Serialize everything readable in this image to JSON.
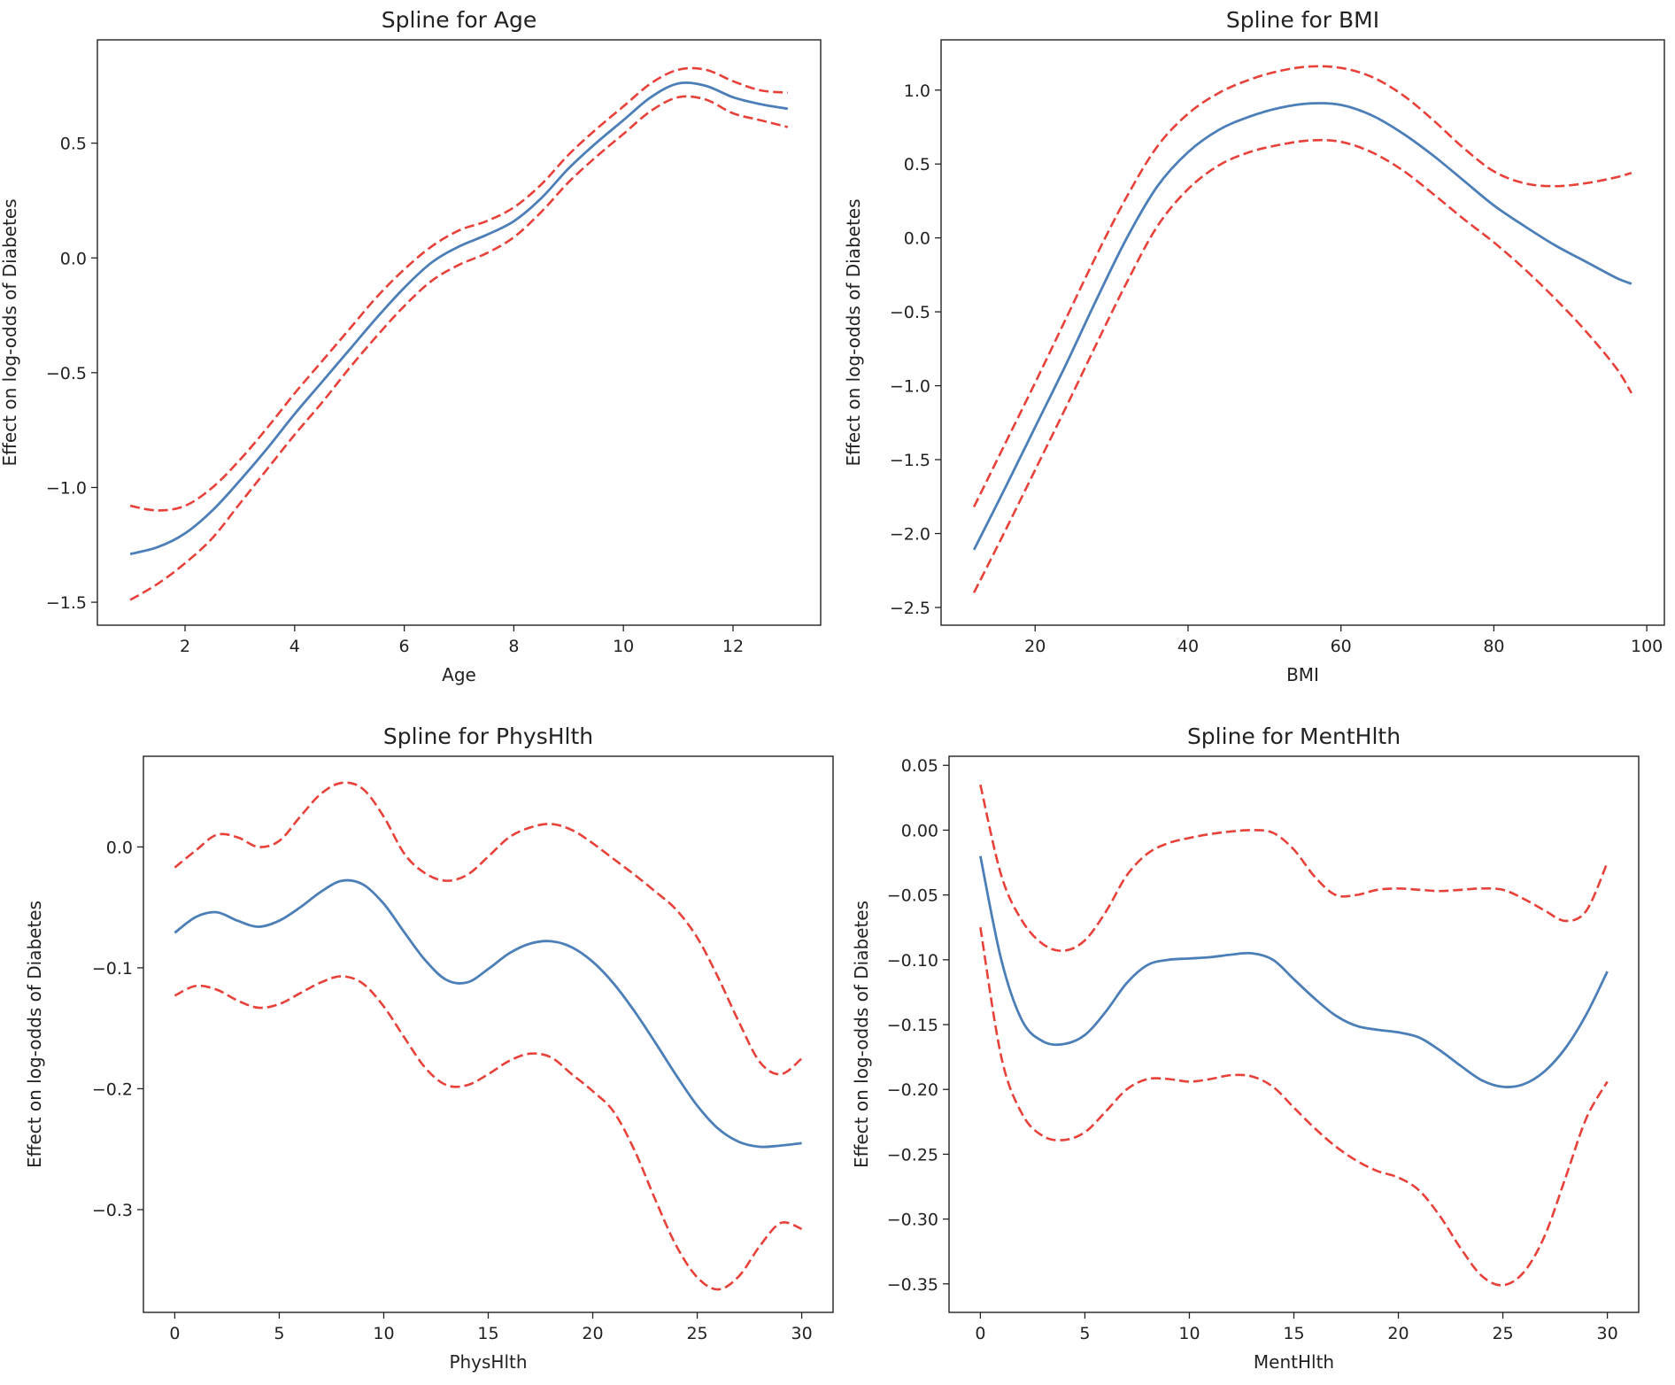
{
  "chart_data": [
    {
      "type": "line",
      "title": "Spline for Age",
      "xlabel": "Age",
      "ylabel": "Effect on log-odds of Diabetes",
      "xlim": [
        0.4,
        13.6
      ],
      "ylim": [
        -1.6,
        0.95
      ],
      "xticks": [
        2,
        4,
        6,
        8,
        10,
        12
      ],
      "xtick_labels": [
        "2",
        "4",
        "6",
        "8",
        "10",
        "12"
      ],
      "yticks": [
        -1.5,
        -1.0,
        -0.5,
        0.0,
        0.5
      ],
      "ytick_labels": [
        "−1.5",
        "−1.0",
        "−0.5",
        "0.0",
        "0.5"
      ],
      "x": [
        1,
        1.5,
        2,
        2.5,
        3,
        3.5,
        4,
        4.5,
        5,
        5.5,
        6,
        6.5,
        7,
        7.5,
        8,
        8.5,
        9,
        9.5,
        10,
        10.5,
        11,
        11.5,
        12,
        12.5,
        13
      ],
      "series": [
        {
          "role": "estimate",
          "color": "#4c7fb8",
          "dash": "solid",
          "values": [
            -1.29,
            -1.26,
            -1.2,
            -1.1,
            -0.97,
            -0.83,
            -0.68,
            -0.54,
            -0.4,
            -0.26,
            -0.13,
            -0.02,
            0.05,
            0.1,
            0.16,
            0.26,
            0.39,
            0.5,
            0.6,
            0.7,
            0.76,
            0.75,
            0.7,
            0.67,
            0.65
          ]
        },
        {
          "role": "upper",
          "color": "#e8413a",
          "dash": "dashed",
          "values": [
            -1.08,
            -1.1,
            -1.08,
            -1.0,
            -0.88,
            -0.74,
            -0.59,
            -0.45,
            -0.31,
            -0.17,
            -0.05,
            0.05,
            0.12,
            0.16,
            0.22,
            0.32,
            0.45,
            0.56,
            0.66,
            0.76,
            0.82,
            0.82,
            0.77,
            0.73,
            0.72
          ]
        },
        {
          "role": "lower",
          "color": "#e8413a",
          "dash": "dashed",
          "values": [
            -1.49,
            -1.42,
            -1.33,
            -1.22,
            -1.07,
            -0.92,
            -0.77,
            -0.63,
            -0.48,
            -0.34,
            -0.21,
            -0.1,
            -0.03,
            0.02,
            0.09,
            0.2,
            0.33,
            0.44,
            0.54,
            0.64,
            0.7,
            0.69,
            0.63,
            0.6,
            0.57
          ]
        }
      ]
    },
    {
      "type": "line",
      "title": "Spline for BMI",
      "xlabel": "BMI",
      "ylabel": "Effect on log-odds of Diabetes",
      "xlim": [
        7.7,
        102.3
      ],
      "ylim": [
        -2.62,
        1.34
      ],
      "xticks": [
        20,
        40,
        60,
        80,
        100
      ],
      "xtick_labels": [
        "20",
        "40",
        "60",
        "80",
        "100"
      ],
      "yticks": [
        -2.5,
        -2.0,
        -1.5,
        -1.0,
        -0.5,
        0.0,
        0.5,
        1.0
      ],
      "ytick_labels": [
        "−2.5",
        "−2.0",
        "−1.5",
        "−1.0",
        "−0.5",
        "0.0",
        "0.5",
        "1.0"
      ],
      "x": [
        12,
        16,
        20,
        24,
        28,
        32,
        36,
        40,
        44,
        48,
        52,
        56,
        60,
        64,
        68,
        72,
        76,
        80,
        84,
        88,
        92,
        96,
        98
      ],
      "series": [
        {
          "role": "estimate",
          "color": "#4c7fb8",
          "dash": "solid",
          "values": [
            -2.11,
            -1.7,
            -1.28,
            -0.86,
            -0.42,
            0.0,
            0.35,
            0.58,
            0.73,
            0.82,
            0.88,
            0.91,
            0.9,
            0.83,
            0.71,
            0.56,
            0.39,
            0.22,
            0.08,
            -0.05,
            -0.16,
            -0.27,
            -0.31
          ]
        },
        {
          "role": "upper",
          "color": "#e8413a",
          "dash": "dashed",
          "values": [
            -1.82,
            -1.4,
            -0.98,
            -0.55,
            -0.12,
            0.28,
            0.62,
            0.84,
            0.98,
            1.07,
            1.13,
            1.16,
            1.15,
            1.09,
            0.97,
            0.8,
            0.61,
            0.45,
            0.37,
            0.35,
            0.37,
            0.41,
            0.44
          ]
        },
        {
          "role": "lower",
          "color": "#e8413a",
          "dash": "dashed",
          "values": [
            -2.4,
            -1.99,
            -1.57,
            -1.15,
            -0.72,
            -0.3,
            0.08,
            0.33,
            0.49,
            0.58,
            0.63,
            0.66,
            0.65,
            0.58,
            0.46,
            0.3,
            0.13,
            -0.03,
            -0.21,
            -0.41,
            -0.63,
            -0.88,
            -1.05
          ]
        }
      ]
    },
    {
      "type": "line",
      "title": "Spline for PhysHlth",
      "xlabel": "PhysHlth",
      "ylabel": "Effect on log-odds of Diabetes",
      "xlim": [
        -1.5,
        31.5
      ],
      "ylim": [
        -0.385,
        0.075
      ],
      "xticks": [
        0,
        5,
        10,
        15,
        20,
        25,
        30
      ],
      "xtick_labels": [
        "0",
        "5",
        "10",
        "15",
        "20",
        "25",
        "30"
      ],
      "yticks": [
        -0.3,
        -0.2,
        -0.1,
        0.0
      ],
      "ytick_labels": [
        "−0.3",
        "−0.2",
        "−0.1",
        "0.0"
      ],
      "x": [
        0,
        1,
        2,
        3,
        4,
        5,
        6,
        7,
        8,
        9,
        10,
        11,
        12,
        13,
        14,
        15,
        16,
        17,
        18,
        19,
        20,
        21,
        22,
        23,
        24,
        25,
        26,
        27,
        28,
        29,
        30
      ],
      "series": [
        {
          "role": "estimate",
          "color": "#4c7fb8",
          "dash": "solid",
          "values": [
            -0.071,
            -0.058,
            -0.054,
            -0.061,
            -0.066,
            -0.061,
            -0.05,
            -0.037,
            -0.028,
            -0.031,
            -0.047,
            -0.071,
            -0.094,
            -0.11,
            -0.112,
            -0.101,
            -0.088,
            -0.08,
            -0.078,
            -0.083,
            -0.095,
            -0.113,
            -0.136,
            -0.162,
            -0.189,
            -0.214,
            -0.233,
            -0.244,
            -0.248,
            -0.247,
            -0.245
          ]
        },
        {
          "role": "upper",
          "color": "#e8413a",
          "dash": "dashed",
          "values": [
            -0.017,
            -0.003,
            0.01,
            0.008,
            0.0,
            0.005,
            0.025,
            0.044,
            0.053,
            0.048,
            0.025,
            -0.006,
            -0.022,
            -0.028,
            -0.023,
            -0.008,
            0.008,
            0.016,
            0.019,
            0.014,
            0.003,
            -0.01,
            -0.023,
            -0.037,
            -0.052,
            -0.075,
            -0.108,
            -0.145,
            -0.178,
            -0.188,
            -0.175
          ]
        },
        {
          "role": "lower",
          "color": "#e8413a",
          "dash": "dashed",
          "values": [
            -0.123,
            -0.115,
            -0.118,
            -0.127,
            -0.133,
            -0.13,
            -0.121,
            -0.112,
            -0.107,
            -0.113,
            -0.132,
            -0.158,
            -0.183,
            -0.197,
            -0.197,
            -0.188,
            -0.177,
            -0.171,
            -0.174,
            -0.188,
            -0.202,
            -0.219,
            -0.251,
            -0.292,
            -0.33,
            -0.356,
            -0.366,
            -0.355,
            -0.33,
            -0.311,
            -0.316
          ]
        }
      ]
    },
    {
      "type": "line",
      "title": "Spline for MentHlth",
      "xlabel": "MentHlth",
      "ylabel": "Effect on log-odds of Diabetes",
      "xlim": [
        -1.5,
        31.5
      ],
      "ylim": [
        -0.372,
        0.057
      ],
      "xticks": [
        0,
        5,
        10,
        15,
        20,
        25,
        30
      ],
      "xtick_labels": [
        "0",
        "5",
        "10",
        "15",
        "20",
        "25",
        "30"
      ],
      "yticks": [
        -0.35,
        -0.3,
        -0.25,
        -0.2,
        -0.15,
        -0.1,
        -0.05,
        0.0,
        0.05
      ],
      "ytick_labels": [
        "−0.35",
        "−0.30",
        "−0.25",
        "−0.20",
        "−0.15",
        "−0.10",
        "−0.05",
        "0.00",
        "0.05"
      ],
      "x": [
        0,
        1,
        2,
        3,
        4,
        5,
        6,
        7,
        8,
        9,
        10,
        11,
        12,
        13,
        14,
        15,
        16,
        17,
        18,
        19,
        20,
        21,
        22,
        23,
        24,
        25,
        26,
        27,
        28,
        29,
        30
      ],
      "series": [
        {
          "role": "estimate",
          "color": "#4c7fb8",
          "dash": "solid",
          "values": [
            -0.02,
            -0.1,
            -0.147,
            -0.163,
            -0.165,
            -0.158,
            -0.14,
            -0.118,
            -0.104,
            -0.1,
            -0.099,
            -0.098,
            -0.096,
            -0.095,
            -0.1,
            -0.115,
            -0.13,
            -0.143,
            -0.151,
            -0.154,
            -0.156,
            -0.16,
            -0.17,
            -0.182,
            -0.193,
            -0.198,
            -0.196,
            -0.186,
            -0.168,
            -0.142,
            -0.109
          ]
        },
        {
          "role": "upper",
          "color": "#e8413a",
          "dash": "dashed",
          "values": [
            0.035,
            -0.035,
            -0.07,
            -0.088,
            -0.093,
            -0.085,
            -0.063,
            -0.035,
            -0.018,
            -0.01,
            -0.006,
            -0.003,
            -0.001,
            0.0,
            -0.002,
            -0.015,
            -0.036,
            -0.05,
            -0.05,
            -0.046,
            -0.045,
            -0.046,
            -0.047,
            -0.046,
            -0.045,
            -0.046,
            -0.053,
            -0.062,
            -0.07,
            -0.062,
            -0.025
          ]
        },
        {
          "role": "lower",
          "color": "#e8413a",
          "dash": "dashed",
          "values": [
            -0.075,
            -0.175,
            -0.219,
            -0.236,
            -0.239,
            -0.233,
            -0.217,
            -0.2,
            -0.192,
            -0.192,
            -0.194,
            -0.192,
            -0.189,
            -0.19,
            -0.198,
            -0.214,
            -0.23,
            -0.244,
            -0.255,
            -0.263,
            -0.268,
            -0.278,
            -0.298,
            -0.323,
            -0.344,
            -0.351,
            -0.341,
            -0.313,
            -0.268,
            -0.222,
            -0.194
          ]
        }
      ]
    }
  ]
}
